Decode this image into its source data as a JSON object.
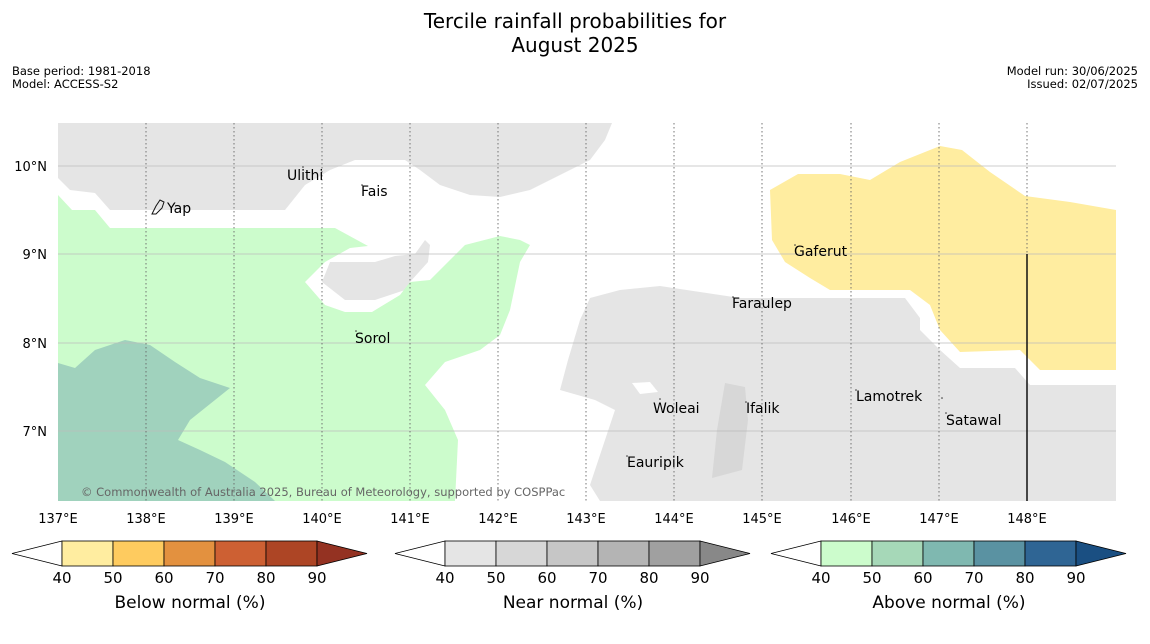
{
  "title": {
    "line1": "Tercile rainfall probabilities for",
    "line2": "August 2025"
  },
  "meta": {
    "base_period": "Base period: 1981-2018",
    "model": "Model: ACCESS-S2",
    "model_run": "Model run: 30/06/2025",
    "issued": "Issued: 02/07/2025"
  },
  "map": {
    "lon_ticks": [
      "137°E",
      "138°E",
      "139°E",
      "140°E",
      "141°E",
      "142°E",
      "143°E",
      "144°E",
      "145°E",
      "146°E",
      "147°E",
      "148°E"
    ],
    "lat_ticks": [
      "10°N",
      "9°N",
      "8°N",
      "7°N"
    ],
    "places": {
      "yap": "Yap",
      "ulithi": "Ulithi",
      "fais": "Fais",
      "sorol": "Sorol",
      "gaferut": "Gaferut",
      "faraulep": "Faraulep",
      "woleai": "Woleai",
      "ifalik": "Ifalik",
      "eauripik": "Eauripik",
      "lamotrek": "Lamotrek",
      "satawal": "Satawal"
    },
    "copyright": "© Commonwealth of Australia 2025, Bureau of Meteorology, supported by COSPPac"
  },
  "colorbars": {
    "tick_labels": [
      "40",
      "50",
      "60",
      "70",
      "80",
      "90"
    ],
    "below": {
      "label": "Below normal (%)",
      "colors": [
        "#fff",
        "#ffeda0",
        "#fecb5f",
        "#e3913f",
        "#cd6033",
        "#ad4525",
        "#943222"
      ]
    },
    "near": {
      "label": "Near normal (%)",
      "colors": [
        "#fff",
        "#e5e5e5",
        "#d7d7d7",
        "#c6c6c6",
        "#b4b4b4",
        "#a0a0a0",
        "#888888"
      ]
    },
    "above": {
      "label": "Above normal (%)",
      "colors": [
        "#fff",
        "#ccfccc",
        "#a6d8b8",
        "#7fb8b0",
        "#5a92a2",
        "#2f6594",
        "#1a4f82"
      ]
    }
  }
}
